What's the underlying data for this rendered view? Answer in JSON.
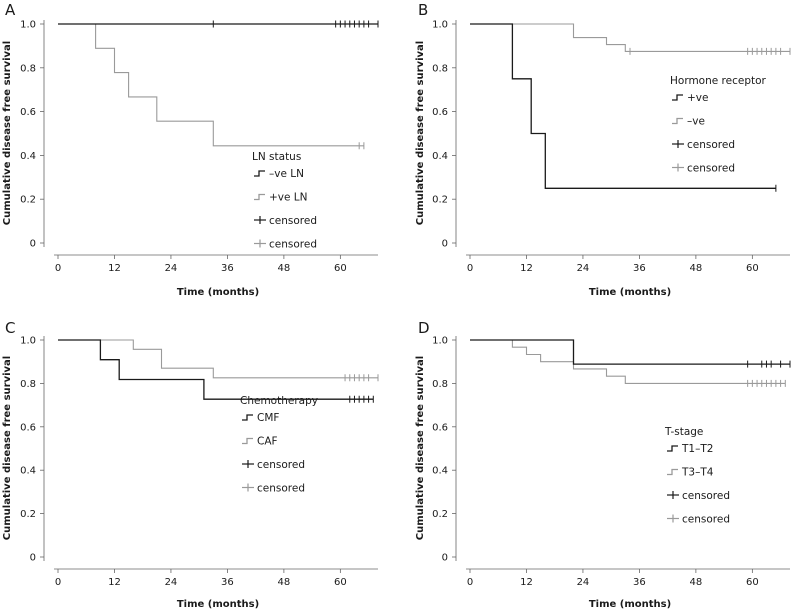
{
  "colors": {
    "black": "#1a1a1a",
    "gray": "#9a9a9a"
  },
  "chart_data": [
    {
      "panel": "A",
      "type": "line",
      "xlabel": "Time (months)",
      "ylabel": "Cumulative disease free survival",
      "xlim": [
        0,
        68
      ],
      "ylim": [
        0,
        1.0
      ],
      "xticks": [
        0,
        12,
        24,
        36,
        48,
        60
      ],
      "yticks": [
        0,
        0.2,
        0.4,
        0.6,
        0.8,
        1.0
      ],
      "ytick_labels": [
        "0",
        "0.2",
        "0.4",
        "0.6",
        "0.8",
        "1.0"
      ],
      "legend_title": "LN status",
      "legend_entries": [
        "–ve LN",
        "+ve LN",
        "censored",
        "censored"
      ],
      "series": [
        {
          "name": "–ve LN",
          "color": "#1a1a1a",
          "x": [
            0,
            68
          ],
          "y": [
            1.0,
            1.0
          ],
          "censored_x": [
            33,
            59,
            60,
            61,
            62,
            63,
            64,
            65,
            66,
            68
          ],
          "censored_y": 1.0
        },
        {
          "name": "+ve LN",
          "color": "#9a9a9a",
          "x": [
            0,
            8,
            8,
            12,
            12,
            15,
            15,
            21,
            21,
            33,
            33,
            65
          ],
          "y": [
            1.0,
            1.0,
            0.889,
            0.889,
            0.778,
            0.778,
            0.667,
            0.667,
            0.556,
            0.556,
            0.444,
            0.444
          ],
          "censored_x": [
            64,
            65
          ],
          "censored_y": 0.444
        }
      ]
    },
    {
      "panel": "B",
      "type": "line",
      "xlabel": "Time (months)",
      "ylabel": "Cumulative disease free survival",
      "xlim": [
        0,
        68
      ],
      "ylim": [
        0,
        1.0
      ],
      "xticks": [
        0,
        12,
        24,
        36,
        48,
        60
      ],
      "yticks": [
        0,
        0.2,
        0.4,
        0.6,
        0.8,
        1.0
      ],
      "ytick_labels": [
        "0",
        "0.2",
        "0.4",
        "0.6",
        "0.8",
        "1.0"
      ],
      "legend_title": "Hormone receptor",
      "legend_entries": [
        "+ve",
        "–ve",
        "censored",
        "censored"
      ],
      "series": [
        {
          "name": "+ve",
          "color": "#1a1a1a",
          "x": [
            0,
            9,
            9,
            13,
            13,
            16,
            16,
            65
          ],
          "y": [
            1.0,
            1.0,
            0.75,
            0.75,
            0.5,
            0.5,
            0.25,
            0.25
          ],
          "censored_x": [
            65
          ],
          "censored_y": 0.25
        },
        {
          "name": "–ve",
          "color": "#9a9a9a",
          "x": [
            0,
            22,
            22,
            29,
            29,
            33,
            33,
            68
          ],
          "y": [
            1.0,
            1.0,
            0.938,
            0.938,
            0.906,
            0.906,
            0.875,
            0.875
          ],
          "censored_x": [
            34,
            59,
            60,
            61,
            62,
            63,
            64,
            65,
            66,
            68
          ],
          "censored_y": 0.875
        }
      ]
    },
    {
      "panel": "C",
      "type": "line",
      "xlabel": "Time (months)",
      "ylabel": "Cumulative disease free survival",
      "xlim": [
        0,
        68
      ],
      "ylim": [
        0,
        1.0
      ],
      "xticks": [
        0,
        12,
        24,
        36,
        48,
        60
      ],
      "yticks": [
        0,
        0.2,
        0.4,
        0.6,
        0.8,
        1.0
      ],
      "ytick_labels": [
        "0",
        "0.2",
        "0.4",
        "0.6",
        "0.8",
        "1.0"
      ],
      "legend_title": "Chemotherapy",
      "legend_entries": [
        "CMF",
        "CAF",
        "censored",
        "censored"
      ],
      "series": [
        {
          "name": "CMF",
          "color": "#1a1a1a",
          "x": [
            0,
            9,
            9,
            13,
            13,
            31,
            31,
            67
          ],
          "y": [
            1.0,
            1.0,
            0.909,
            0.909,
            0.818,
            0.818,
            0.727,
            0.727
          ],
          "censored_x": [
            62,
            63,
            64,
            65,
            66,
            67
          ],
          "censored_y": 0.727
        },
        {
          "name": "CAF",
          "color": "#9a9a9a",
          "x": [
            0,
            16,
            16,
            22,
            22,
            33,
            33,
            68
          ],
          "y": [
            1.0,
            1.0,
            0.957,
            0.957,
            0.87,
            0.87,
            0.826,
            0.826
          ],
          "censored_x": [
            61,
            62,
            63,
            64,
            65,
            66,
            68
          ],
          "censored_y": 0.826
        }
      ]
    },
    {
      "panel": "D",
      "type": "line",
      "xlabel": "Time (months)",
      "ylabel": "Cumulative disease free survival",
      "xlim": [
        0,
        68
      ],
      "ylim": [
        0,
        1.0
      ],
      "xticks": [
        0,
        12,
        24,
        36,
        48,
        60
      ],
      "yticks": [
        0,
        0.2,
        0.4,
        0.6,
        0.8,
        1.0
      ],
      "ytick_labels": [
        "0",
        "0.2",
        "0.4",
        "0.6",
        "0.8",
        "1.0"
      ],
      "legend_title": "T-stage",
      "legend_entries": [
        "T1–T2",
        "T3–T4",
        "censored",
        "censored"
      ],
      "series": [
        {
          "name": "T1–T2",
          "color": "#1a1a1a",
          "x": [
            0,
            22,
            22,
            68
          ],
          "y": [
            1.0,
            1.0,
            0.889,
            0.889
          ],
          "censored_x": [
            59,
            62,
            63,
            64,
            66,
            68
          ],
          "censored_y": 0.889
        },
        {
          "name": "T3–T4",
          "color": "#9a9a9a",
          "x": [
            0,
            9,
            9,
            12,
            12,
            15,
            15,
            22,
            22,
            29,
            29,
            33,
            33,
            67
          ],
          "y": [
            1.0,
            1.0,
            0.967,
            0.967,
            0.933,
            0.933,
            0.9,
            0.9,
            0.867,
            0.867,
            0.833,
            0.833,
            0.8,
            0.8
          ],
          "censored_x": [
            59,
            60,
            61,
            62,
            63,
            64,
            65,
            66,
            67
          ],
          "censored_y": 0.8
        }
      ]
    }
  ]
}
